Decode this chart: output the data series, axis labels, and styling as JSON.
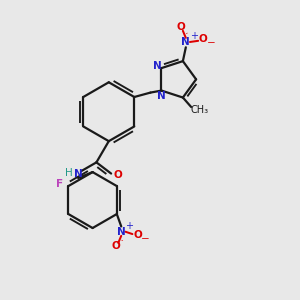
{
  "bg_color": "#e8e8e8",
  "bond_color": "#1a1a1a",
  "N_color": "#2222cc",
  "O_color": "#dd0000",
  "F_color": "#bb44bb",
  "H_color": "#229988",
  "line_width": 1.6,
  "figsize": [
    3.0,
    3.0
  ],
  "dpi": 100,
  "xlim": [
    0,
    10
  ],
  "ylim": [
    0,
    10
  ]
}
